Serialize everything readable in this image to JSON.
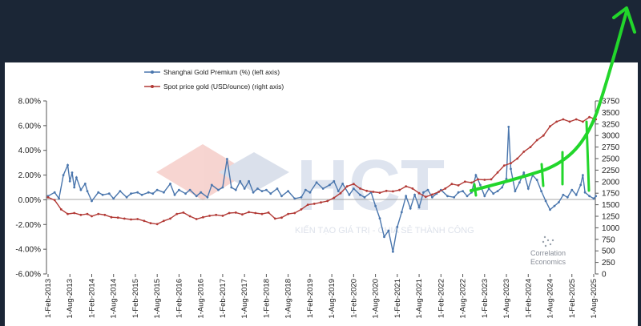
{
  "watermark": {
    "logo_text": "HCT",
    "tagline": "KIẾN TẠO GIÁ TRỊ - CHIA SẺ THÀNH CÔNG"
  },
  "brand": {
    "line1": "Correlation",
    "line2": "Economics"
  },
  "colors": {
    "premium": "#4a76ad",
    "gold": "#b23a36",
    "overlay": "#22d62b",
    "frame": "#1b2636"
  },
  "chart_data": {
    "type": "line",
    "legend_position": "top-left",
    "grid": false,
    "x_categories": [
      "1-Feb-2013",
      "1-Aug-2013",
      "1-Feb-2014",
      "1-Aug-2014",
      "1-Feb-2015",
      "1-Aug-2015",
      "1-Feb-2016",
      "1-Aug-2016",
      "1-Feb-2017",
      "1-Aug-2017",
      "1-Feb-2018",
      "1-Aug-2018",
      "1-Feb-2019",
      "1-Aug-2019",
      "1-Feb-2020",
      "1-Aug-2020",
      "1-Feb-2021",
      "1-Aug-2021",
      "1-Feb-2022",
      "1-Aug-2022",
      "1-Feb-2023",
      "1-Aug-2023",
      "1-Feb-2024",
      "1-Aug-2024",
      "1-Feb-2025",
      "1-Aug-2025"
    ],
    "y_left": {
      "ticks": [
        "8.00%",
        "6.00%",
        "4.00%",
        "2.00%",
        "0.00%",
        "-2.00%",
        "-4.00%",
        "-6.00%"
      ],
      "range": [
        -6,
        8
      ]
    },
    "y_right": {
      "ticks": [
        "3750",
        "3500",
        "3250",
        "3000",
        "2750",
        "2500",
        "2250",
        "2000",
        "1750",
        "1500",
        "1250",
        "1000",
        "750",
        "500",
        "250",
        "0"
      ],
      "range": [
        0,
        3750
      ]
    },
    "series": [
      {
        "name": "Shanghai Gold Premium (%) (left axis)",
        "axis": "left",
        "points": [
          [
            0,
            0.3
          ],
          [
            0.3,
            0.6
          ],
          [
            0.5,
            0.1
          ],
          [
            0.7,
            2.0
          ],
          [
            0.9,
            2.8
          ],
          [
            1.0,
            1.5
          ],
          [
            1.1,
            2.2
          ],
          [
            1.2,
            1.0
          ],
          [
            1.3,
            1.8
          ],
          [
            1.5,
            0.8
          ],
          [
            1.7,
            1.3
          ],
          [
            1.8,
            0.7
          ],
          [
            2.0,
            -0.1
          ],
          [
            2.3,
            0.6
          ],
          [
            2.5,
            0.4
          ],
          [
            2.8,
            0.5
          ],
          [
            3.0,
            0.1
          ],
          [
            3.3,
            0.7
          ],
          [
            3.6,
            0.2
          ],
          [
            3.8,
            0.5
          ],
          [
            4.1,
            0.6
          ],
          [
            4.3,
            0.4
          ],
          [
            4.6,
            0.6
          ],
          [
            4.8,
            0.5
          ],
          [
            5.0,
            0.8
          ],
          [
            5.3,
            0.6
          ],
          [
            5.6,
            1.3
          ],
          [
            5.8,
            0.4
          ],
          [
            6.0,
            0.8
          ],
          [
            6.3,
            0.5
          ],
          [
            6.5,
            0.8
          ],
          [
            6.8,
            0.3
          ],
          [
            7.0,
            0.6
          ],
          [
            7.3,
            0.2
          ],
          [
            7.5,
            1.2
          ],
          [
            7.8,
            0.8
          ],
          [
            8.0,
            1.0
          ],
          [
            8.2,
            3.3
          ],
          [
            8.4,
            1.0
          ],
          [
            8.6,
            0.8
          ],
          [
            8.8,
            1.5
          ],
          [
            9.0,
            0.9
          ],
          [
            9.2,
            1.5
          ],
          [
            9.4,
            0.6
          ],
          [
            9.6,
            0.9
          ],
          [
            9.8,
            0.7
          ],
          [
            10.0,
            0.8
          ],
          [
            10.2,
            0.5
          ],
          [
            10.5,
            0.9
          ],
          [
            10.7,
            0.3
          ],
          [
            11.0,
            0.7
          ],
          [
            11.3,
            0.1
          ],
          [
            11.6,
            0.2
          ],
          [
            11.8,
            0.8
          ],
          [
            12.0,
            0.6
          ],
          [
            12.3,
            1.4
          ],
          [
            12.6,
            0.9
          ],
          [
            12.9,
            1.2
          ],
          [
            13.1,
            1.5
          ],
          [
            13.3,
            0.7
          ],
          [
            13.5,
            1.3
          ],
          [
            13.8,
            0.4
          ],
          [
            14.0,
            0.9
          ],
          [
            14.3,
            0.4
          ],
          [
            14.5,
            0.2
          ],
          [
            14.8,
            0.6
          ],
          [
            15.0,
            -0.5
          ],
          [
            15.2,
            -1.5
          ],
          [
            15.4,
            -3.0
          ],
          [
            15.6,
            -2.5
          ],
          [
            15.8,
            -4.2
          ],
          [
            16.0,
            -2.2
          ],
          [
            16.2,
            -1.0
          ],
          [
            16.4,
            0.3
          ],
          [
            16.6,
            -0.7
          ],
          [
            16.8,
            0.4
          ],
          [
            17.0,
            -0.6
          ],
          [
            17.2,
            0.6
          ],
          [
            17.4,
            0.8
          ],
          [
            17.6,
            0.2
          ],
          [
            17.8,
            0.5
          ],
          [
            18.0,
            0.8
          ],
          [
            18.3,
            0.3
          ],
          [
            18.6,
            0.2
          ],
          [
            18.8,
            0.6
          ],
          [
            19.0,
            0.7
          ],
          [
            19.2,
            0.3
          ],
          [
            19.4,
            0.6
          ],
          [
            19.6,
            2.0
          ],
          [
            19.8,
            1.2
          ],
          [
            20.0,
            0.3
          ],
          [
            20.2,
            0.9
          ],
          [
            20.4,
            0.5
          ],
          [
            20.6,
            0.7
          ],
          [
            20.8,
            1.0
          ],
          [
            21.0,
            1.7
          ],
          [
            21.1,
            5.9
          ],
          [
            21.2,
            2.5
          ],
          [
            21.4,
            0.7
          ],
          [
            21.6,
            1.4
          ],
          [
            21.8,
            2.2
          ],
          [
            22.0,
            0.9
          ],
          [
            22.2,
            2.0
          ],
          [
            22.4,
            1.6
          ],
          [
            22.6,
            0.7
          ],
          [
            22.8,
            -0.1
          ],
          [
            23.0,
            -0.8
          ],
          [
            23.2,
            -0.5
          ],
          [
            23.4,
            -0.2
          ],
          [
            23.6,
            0.4
          ],
          [
            23.8,
            0.2
          ],
          [
            24.0,
            0.8
          ],
          [
            24.2,
            0.4
          ],
          [
            24.4,
            1.2
          ],
          [
            24.5,
            2.0
          ],
          [
            24.6,
            0.6
          ],
          [
            24.8,
            0.3
          ],
          [
            25.0,
            0.1
          ],
          [
            25.1,
            0.3
          ]
        ]
      },
      {
        "name": "Spot price gold (USD/ounce) (right axis)",
        "axis": "right",
        "points": [
          [
            0,
            1660
          ],
          [
            0.3,
            1600
          ],
          [
            0.6,
            1400
          ],
          [
            0.9,
            1300
          ],
          [
            1.2,
            1320
          ],
          [
            1.5,
            1280
          ],
          [
            1.8,
            1300
          ],
          [
            2.0,
            1250
          ],
          [
            2.3,
            1300
          ],
          [
            2.6,
            1280
          ],
          [
            2.9,
            1230
          ],
          [
            3.2,
            1220
          ],
          [
            3.5,
            1200
          ],
          [
            3.8,
            1180
          ],
          [
            4.1,
            1190
          ],
          [
            4.4,
            1150
          ],
          [
            4.7,
            1100
          ],
          [
            5.0,
            1080
          ],
          [
            5.3,
            1150
          ],
          [
            5.6,
            1200
          ],
          [
            5.9,
            1300
          ],
          [
            6.2,
            1330
          ],
          [
            6.5,
            1250
          ],
          [
            6.8,
            1190
          ],
          [
            7.1,
            1230
          ],
          [
            7.4,
            1260
          ],
          [
            7.7,
            1280
          ],
          [
            8.0,
            1260
          ],
          [
            8.3,
            1320
          ],
          [
            8.6,
            1330
          ],
          [
            8.9,
            1290
          ],
          [
            9.2,
            1340
          ],
          [
            9.5,
            1320
          ],
          [
            9.8,
            1300
          ],
          [
            10.1,
            1330
          ],
          [
            10.4,
            1200
          ],
          [
            10.7,
            1220
          ],
          [
            11.0,
            1300
          ],
          [
            11.3,
            1320
          ],
          [
            11.6,
            1400
          ],
          [
            11.9,
            1500
          ],
          [
            12.2,
            1520
          ],
          [
            12.5,
            1550
          ],
          [
            12.8,
            1580
          ],
          [
            13.1,
            1650
          ],
          [
            13.4,
            1750
          ],
          [
            13.7,
            1900
          ],
          [
            14.0,
            1950
          ],
          [
            14.3,
            1850
          ],
          [
            14.6,
            1800
          ],
          [
            14.9,
            1780
          ],
          [
            15.2,
            1760
          ],
          [
            15.5,
            1800
          ],
          [
            15.8,
            1790
          ],
          [
            16.1,
            1820
          ],
          [
            16.4,
            1900
          ],
          [
            16.7,
            1850
          ],
          [
            17.0,
            1750
          ],
          [
            17.3,
            1670
          ],
          [
            17.6,
            1720
          ],
          [
            17.9,
            1780
          ],
          [
            18.2,
            1850
          ],
          [
            18.5,
            1950
          ],
          [
            18.8,
            1920
          ],
          [
            19.1,
            2000
          ],
          [
            19.4,
            1980
          ],
          [
            19.7,
            2050
          ],
          [
            20.0,
            2040
          ],
          [
            20.3,
            2050
          ],
          [
            20.6,
            2200
          ],
          [
            20.9,
            2350
          ],
          [
            21.2,
            2400
          ],
          [
            21.5,
            2500
          ],
          [
            21.8,
            2650
          ],
          [
            22.1,
            2750
          ],
          [
            22.4,
            2900
          ],
          [
            22.7,
            3000
          ],
          [
            23.0,
            3200
          ],
          [
            23.3,
            3300
          ],
          [
            23.6,
            3350
          ],
          [
            23.9,
            3300
          ],
          [
            24.2,
            3350
          ],
          [
            24.5,
            3300
          ],
          [
            24.8,
            3400
          ],
          [
            25.1,
            3350
          ]
        ]
      }
    ]
  }
}
